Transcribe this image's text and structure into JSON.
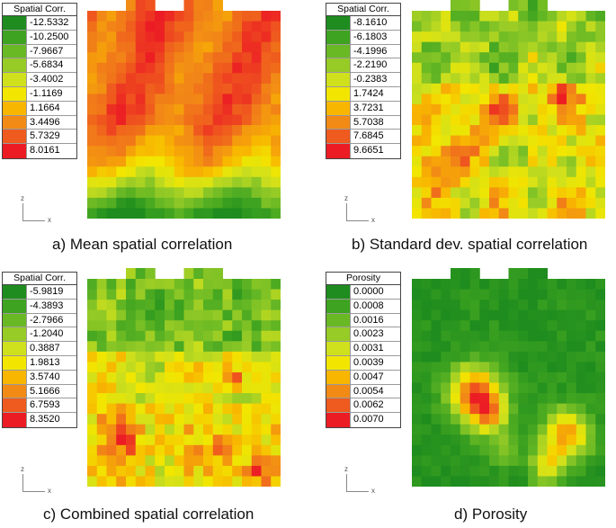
{
  "chart_data": [
    {
      "type": "heatmap",
      "title": "a) Mean spatial correlation",
      "legend_title": "Spatial Corr.",
      "legend_values": [
        "-12.5332",
        "-10.2500",
        "-7.9667",
        "-5.6834",
        "-3.4002",
        "-1.1169",
        "1.1664",
        "3.4496",
        "5.7329",
        "8.0161"
      ],
      "axis_labels": {
        "vertical": "z",
        "horizontal": "x"
      },
      "pattern": "mean"
    },
    {
      "type": "heatmap",
      "title": "b) Standard dev. spatial correlation",
      "legend_title": "Spatial Corr.",
      "legend_values": [
        "-8.1610",
        "-6.1803",
        "-4.1996",
        "-2.2190",
        "-0.2383",
        "1.7424",
        "3.7231",
        "5.7038",
        "7.6845",
        "9.6651"
      ],
      "axis_labels": {
        "vertical": "z",
        "horizontal": "x"
      },
      "pattern": "std"
    },
    {
      "type": "heatmap",
      "title": "c) Combined spatial correlation",
      "legend_title": "Spatial Corr.",
      "legend_values": [
        "-5.9819",
        "-4.3893",
        "-2.7966",
        "-1.2040",
        "0.3887",
        "1.9813",
        "3.5740",
        "5.1666",
        "6.7593",
        "8.3520"
      ],
      "axis_labels": {
        "vertical": "z",
        "horizontal": "x"
      },
      "pattern": "combined"
    },
    {
      "type": "heatmap",
      "title": "d) Porosity",
      "legend_title": "Porosity",
      "legend_values": [
        "0.0000",
        "0.0008",
        "0.0016",
        "0.0023",
        "0.0031",
        "0.0039",
        "0.0047",
        "0.0054",
        "0.0062",
        "0.0070"
      ],
      "axis_labels": {
        "vertical": "z",
        "horizontal": "x"
      },
      "pattern": "porosity"
    }
  ],
  "colorscale": [
    "#1e8c1e",
    "#3ea320",
    "#69b924",
    "#97cb26",
    "#cfe01c",
    "#f2e600",
    "#f8b600",
    "#f28a16",
    "#ef5a1e",
    "#ec1c24"
  ]
}
